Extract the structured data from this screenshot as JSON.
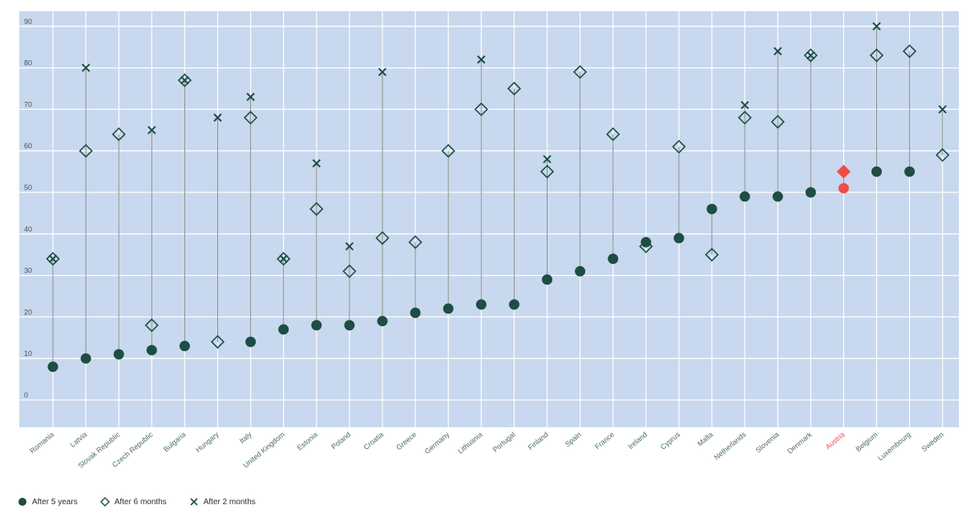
{
  "chart_data": {
    "type": "scatter",
    "categories": [
      "Romania",
      "Latvia",
      "Slovak Republic",
      "Czech Republic",
      "Bulgaria",
      "Hungary",
      "Italy",
      "United Kingdom",
      "Estonia",
      "Poland",
      "Croatia",
      "Greece",
      "Germany",
      "Lithuania",
      "Portugal",
      "Finland",
      "Spain",
      "France",
      "Ireland",
      "Cyprus",
      "Malta",
      "Netherlands",
      "Slovenia",
      "Denmark",
      "Austria",
      "Belgium",
      "Luxembourg",
      "Sweden"
    ],
    "highlight_category": "Austria",
    "y_ticks": [
      0,
      10,
      20,
      30,
      40,
      50,
      60,
      70,
      80,
      90
    ],
    "ylim": [
      -5,
      92
    ],
    "grid": true,
    "series": [
      {
        "name": "After 5 years",
        "marker": "circle",
        "values": [
          8,
          10,
          11,
          12,
          13,
          null,
          14,
          17,
          18,
          18,
          19,
          21,
          22,
          23,
          23,
          29,
          31,
          34,
          38,
          39,
          46,
          49,
          49,
          50,
          51,
          55,
          55,
          null
        ]
      },
      {
        "name": "After 6 months",
        "marker": "diamond",
        "values": [
          34,
          60,
          64,
          18,
          77,
          14,
          68,
          34,
          46,
          31,
          39,
          38,
          60,
          70,
          75,
          55,
          79,
          64,
          37,
          61,
          35,
          68,
          67,
          83,
          55,
          83,
          84,
          59
        ]
      },
      {
        "name": "After 2 months",
        "marker": "x",
        "values": [
          34,
          80,
          null,
          65,
          77,
          68,
          73,
          34,
          57,
          37,
          79,
          null,
          null,
          82,
          null,
          58,
          null,
          null,
          null,
          null,
          null,
          71,
          84,
          83,
          null,
          90,
          null,
          70
        ]
      }
    ],
    "legend_position": "bottom-left"
  },
  "colors": {
    "background": "#c8d8ee",
    "grid": "#ffffff",
    "marker": "#1d4d43",
    "highlight": "#f24b4b",
    "label": "#4a6f58",
    "axis_text": "#3b5a4a"
  }
}
